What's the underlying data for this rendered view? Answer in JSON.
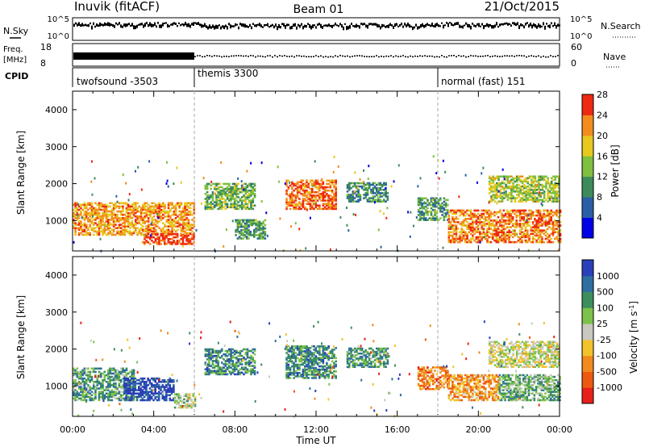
{
  "header": {
    "station": "Inuvik (fitACF)",
    "beam": "Beam 01",
    "date": "21/Oct/2015"
  },
  "strip_panels": {
    "nsky": {
      "label": "N.Sky",
      "right_label": "N.Search",
      "ticks_left": [
        "10^5",
        "10^0"
      ],
      "ticks_right": [
        "10^5",
        "10^0"
      ]
    },
    "freq": {
      "label_top": "Freq.",
      "label_unit": "[MHz]",
      "ticks_left": [
        "18",
        "8"
      ],
      "ticks_right": [
        "60",
        "0"
      ],
      "right_label": "Nave"
    },
    "cpid": {
      "label": "CPID"
    }
  },
  "cpid_segments": [
    {
      "label": "twofsound -3503",
      "start_hour": 0
    },
    {
      "label": "themis 3300",
      "start_hour": 6
    },
    {
      "label": "normal (fast) 151",
      "start_hour": 18
    }
  ],
  "chart_data": [
    {
      "type": "heatmap",
      "title": "",
      "ylabel": "Slant Range [km]",
      "xlabel": "",
      "colorbar_label": "Power [dB]",
      "colorbar_ticks": [
        "4",
        "8",
        "12",
        "16",
        "20",
        "24",
        "28"
      ],
      "colorbar_colors": [
        "#0000e6",
        "#2a5fa8",
        "#3d8b5a",
        "#7fbf3f",
        "#e6c81e",
        "#f28c1e",
        "#ee2a10"
      ],
      "ylim": [
        180,
        4500
      ],
      "yticks": [
        "1000",
        "2000",
        "3000",
        "4000"
      ],
      "xlim_hours": [
        0,
        24
      ],
      "clusters": [
        {
          "t0": 0.0,
          "t1": 6.0,
          "r0": 600,
          "r1": 1500,
          "level": 0.75
        },
        {
          "t0": 3.5,
          "t1": 6.0,
          "r0": 350,
          "r1": 650,
          "level": 0.95
        },
        {
          "t0": 6.5,
          "t1": 9.0,
          "r0": 1300,
          "r1": 2000,
          "level": 0.45
        },
        {
          "t0": 8.0,
          "t1": 9.5,
          "r0": 500,
          "r1": 1000,
          "level": 0.4
        },
        {
          "t0": 10.5,
          "t1": 13.0,
          "r0": 1300,
          "r1": 2100,
          "level": 0.85
        },
        {
          "t0": 13.5,
          "t1": 15.5,
          "r0": 1500,
          "r1": 2000,
          "level": 0.35
        },
        {
          "t0": 17.0,
          "t1": 18.5,
          "r0": 1000,
          "r1": 1600,
          "level": 0.4
        },
        {
          "t0": 18.5,
          "t1": 24.0,
          "r0": 400,
          "r1": 1300,
          "level": 0.8
        },
        {
          "t0": 20.5,
          "t1": 24.0,
          "r0": 1500,
          "r1": 2200,
          "level": 0.55
        }
      ]
    },
    {
      "type": "heatmap",
      "title": "",
      "ylabel": "Slant Range [km]",
      "xlabel": "Time UT",
      "colorbar_label": "Velocity [m s^-1]",
      "colorbar_ticks": [
        "1000",
        "500",
        "100",
        "25",
        "-25",
        "-100",
        "-500",
        "-1000"
      ],
      "colorbar_colors": [
        "#2a3fb8",
        "#2e6ea0",
        "#3c8f5c",
        "#7cc24a",
        "#c8c8c0",
        "#f2c22a",
        "#f08a1e",
        "#ec5a12",
        "#e8201a"
      ],
      "ylim": [
        180,
        4500
      ],
      "yticks": [
        "1000",
        "2000",
        "3000",
        "4000"
      ],
      "xticks": [
        "00:00",
        "04:00",
        "08:00",
        "12:00",
        "16:00",
        "20:00",
        "00:00"
      ],
      "xlim_hours": [
        0,
        24
      ],
      "clusters": [
        {
          "t0": 0.0,
          "t1": 3.0,
          "r0": 600,
          "r1": 1500,
          "level": 0.3
        },
        {
          "t0": 2.5,
          "t1": 5.0,
          "r0": 600,
          "r1": 1200,
          "level": 0.05
        },
        {
          "t0": 5.0,
          "t1": 6.0,
          "r0": 400,
          "r1": 800,
          "level": 0.45
        },
        {
          "t0": 6.5,
          "t1": 9.0,
          "r0": 1300,
          "r1": 2000,
          "level": 0.25
        },
        {
          "t0": 10.5,
          "t1": 13.0,
          "r0": 1200,
          "r1": 2100,
          "level": 0.25
        },
        {
          "t0": 13.5,
          "t1": 15.5,
          "r0": 1500,
          "r1": 2000,
          "level": 0.3
        },
        {
          "t0": 17.0,
          "t1": 18.5,
          "r0": 900,
          "r1": 1500,
          "level": 0.75
        },
        {
          "t0": 18.5,
          "t1": 21.0,
          "r0": 600,
          "r1": 1300,
          "level": 0.7
        },
        {
          "t0": 21.0,
          "t1": 24.0,
          "r0": 600,
          "r1": 1300,
          "level": 0.35
        },
        {
          "t0": 20.5,
          "t1": 24.0,
          "r0": 1500,
          "r1": 2200,
          "level": 0.5
        }
      ]
    }
  ]
}
